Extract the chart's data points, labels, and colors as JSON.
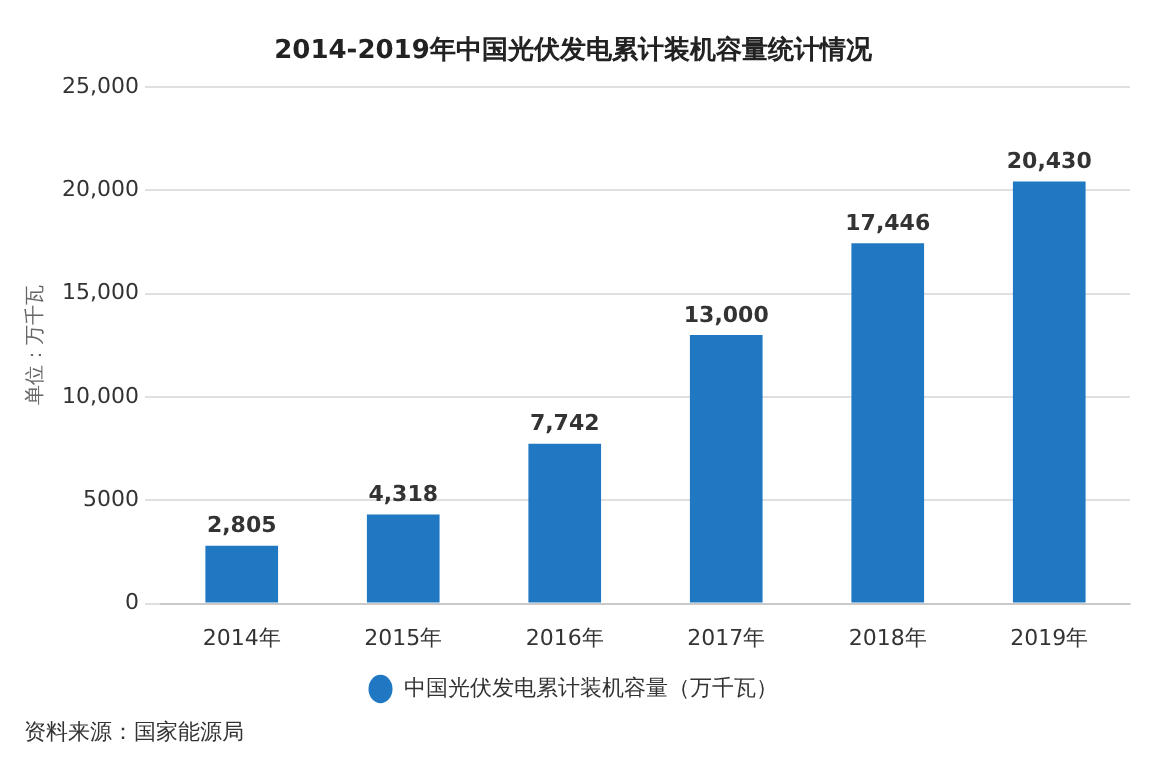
{
  "chart_data": {
    "type": "bar",
    "title": "2014-2019年中国光伏发电累计装机容量统计情况",
    "ylabel": "单位：万千瓦",
    "categories": [
      "2014年",
      "2015年",
      "2016年",
      "2017年",
      "2018年",
      "2019年"
    ],
    "series": [
      {
        "name": "中国光伏发电累计装机容量（万千瓦）",
        "color": "#1f78c1",
        "values": [
          2805,
          4318,
          7742,
          13000,
          17446,
          20430
        ],
        "value_labels": [
          "2,805",
          "4,318",
          "7,742",
          "13,000",
          "17,446",
          "20,430"
        ]
      }
    ],
    "ylim": [
      0,
      25000
    ],
    "yticks": [
      0,
      5000,
      {
        "value": 10000,
        "label": "10,000"
      },
      {
        "value": 15000,
        "label": "15,000"
      },
      {
        "value": 20000,
        "label": "20,000"
      },
      {
        "value": 25000,
        "label": "25,000"
      }
    ],
    "grid": "y",
    "legend": "bottom",
    "marker": "circle",
    "annotations": [
      "资料来源：国家能源局"
    ]
  }
}
